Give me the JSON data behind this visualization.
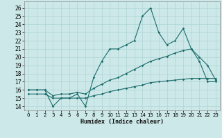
{
  "title": "",
  "xlabel": "Humidex (Indice chaleur)",
  "xlim": [
    -0.5,
    23.5
  ],
  "ylim": [
    13.5,
    26.8
  ],
  "xticks": [
    0,
    1,
    2,
    3,
    4,
    5,
    6,
    7,
    8,
    9,
    10,
    11,
    12,
    13,
    14,
    15,
    16,
    17,
    18,
    19,
    20,
    21,
    22,
    23
  ],
  "yticks": [
    14,
    15,
    16,
    17,
    18,
    19,
    20,
    21,
    22,
    23,
    24,
    25,
    26
  ],
  "bg_color": "#cce8e8",
  "line_color": "#1a6b6b",
  "grid_color": "#aed4d4",
  "line1_x": [
    0,
    1,
    2,
    3,
    4,
    5,
    6,
    7,
    8,
    9,
    10,
    11,
    12,
    13,
    14,
    15,
    16,
    17,
    18,
    19,
    20,
    21,
    22,
    23
  ],
  "line1_y": [
    16,
    16,
    16,
    14,
    15,
    15,
    15.5,
    14,
    17.5,
    19.5,
    21,
    21,
    21.5,
    22,
    25,
    26,
    23,
    21.5,
    22,
    23.5,
    21,
    19.5,
    17,
    17
  ],
  "line2_x": [
    0,
    1,
    2,
    3,
    4,
    5,
    6,
    7,
    8,
    9,
    10,
    11,
    12,
    13,
    14,
    15,
    16,
    17,
    18,
    19,
    20,
    21,
    22,
    23
  ],
  "line2_y": [
    16,
    16,
    16,
    15.3,
    15.5,
    15.5,
    15.7,
    15.5,
    16.2,
    16.7,
    17.2,
    17.5,
    18.0,
    18.5,
    19.0,
    19.5,
    19.8,
    20.1,
    20.5,
    20.8,
    21,
    20,
    19,
    17.2
  ],
  "line3_x": [
    0,
    1,
    2,
    3,
    4,
    5,
    6,
    7,
    8,
    9,
    10,
    11,
    12,
    13,
    14,
    15,
    16,
    17,
    18,
    19,
    20,
    21,
    22,
    23
  ],
  "line3_y": [
    15.5,
    15.5,
    15.5,
    15.0,
    15.0,
    15.0,
    15.0,
    15.0,
    15.3,
    15.5,
    15.8,
    16.0,
    16.2,
    16.4,
    16.6,
    16.9,
    17.0,
    17.1,
    17.2,
    17.3,
    17.4,
    17.4,
    17.4,
    17.4
  ]
}
